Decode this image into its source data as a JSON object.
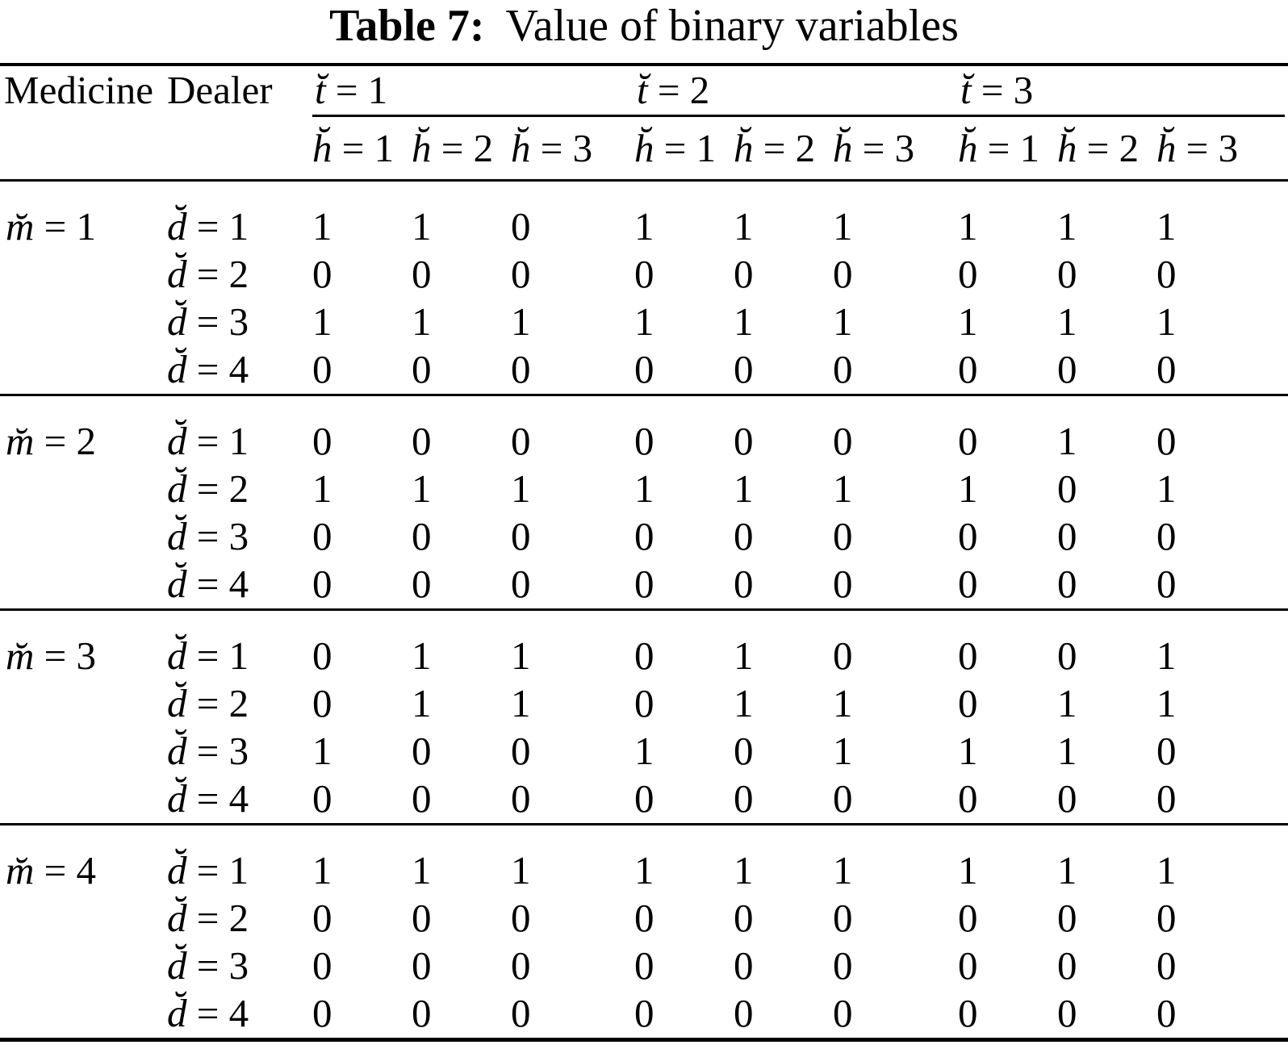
{
  "title": {
    "label": "Table 7:",
    "caption": "Value of binary variables"
  },
  "colors": {
    "background": "#ffffff",
    "text": "#000000",
    "rule": "#000000"
  },
  "header": {
    "medicine": "Medicine",
    "dealer": "Dealer",
    "t_var": "t̆",
    "h_var": "h̆",
    "t_groups": [
      " = 1",
      " = 2",
      " = 3"
    ],
    "h_cols": [
      " = 1",
      " = 2",
      " = 3"
    ]
  },
  "groups": [
    {
      "m_var": "m̆",
      "m_eq": " = 1",
      "rows": [
        {
          "d_var": "d̆",
          "d_eq": " = 1",
          "values": [
            1,
            1,
            0,
            1,
            1,
            1,
            1,
            1,
            1
          ]
        },
        {
          "d_var": "d̆",
          "d_eq": " = 2",
          "values": [
            0,
            0,
            0,
            0,
            0,
            0,
            0,
            0,
            0
          ]
        },
        {
          "d_var": "d̆",
          "d_eq": " = 3",
          "values": [
            1,
            1,
            1,
            1,
            1,
            1,
            1,
            1,
            1
          ]
        },
        {
          "d_var": "d̆",
          "d_eq": " = 4",
          "values": [
            0,
            0,
            0,
            0,
            0,
            0,
            0,
            0,
            0
          ]
        }
      ]
    },
    {
      "m_var": "m̆",
      "m_eq": " = 2",
      "rows": [
        {
          "d_var": "d̆",
          "d_eq": " = 1",
          "values": [
            0,
            0,
            0,
            0,
            0,
            0,
            0,
            1,
            0
          ]
        },
        {
          "d_var": "d̆",
          "d_eq": " = 2",
          "values": [
            1,
            1,
            1,
            1,
            1,
            1,
            1,
            0,
            1
          ]
        },
        {
          "d_var": "d̆",
          "d_eq": " = 3",
          "values": [
            0,
            0,
            0,
            0,
            0,
            0,
            0,
            0,
            0
          ]
        },
        {
          "d_var": "d̆",
          "d_eq": " = 4",
          "values": [
            0,
            0,
            0,
            0,
            0,
            0,
            0,
            0,
            0
          ]
        }
      ]
    },
    {
      "m_var": "m̆",
      "m_eq": " = 3",
      "rows": [
        {
          "d_var": "d̆",
          "d_eq": " = 1",
          "values": [
            0,
            1,
            1,
            0,
            1,
            0,
            0,
            0,
            1
          ]
        },
        {
          "d_var": "d̆",
          "d_eq": " = 2",
          "values": [
            0,
            1,
            1,
            0,
            1,
            1,
            0,
            1,
            1
          ]
        },
        {
          "d_var": "d̆",
          "d_eq": " = 3",
          "values": [
            1,
            0,
            0,
            1,
            0,
            1,
            1,
            1,
            0
          ]
        },
        {
          "d_var": "d̆",
          "d_eq": " = 4",
          "values": [
            0,
            0,
            0,
            0,
            0,
            0,
            0,
            0,
            0
          ]
        }
      ]
    },
    {
      "m_var": "m̆",
      "m_eq": " = 4",
      "rows": [
        {
          "d_var": "d̆",
          "d_eq": " = 1",
          "values": [
            1,
            1,
            1,
            1,
            1,
            1,
            1,
            1,
            1
          ]
        },
        {
          "d_var": "d̆",
          "d_eq": " = 2",
          "values": [
            0,
            0,
            0,
            0,
            0,
            0,
            0,
            0,
            0
          ]
        },
        {
          "d_var": "d̆",
          "d_eq": " = 3",
          "values": [
            0,
            0,
            0,
            0,
            0,
            0,
            0,
            0,
            0
          ]
        },
        {
          "d_var": "d̆",
          "d_eq": " = 4",
          "values": [
            0,
            0,
            0,
            0,
            0,
            0,
            0,
            0,
            0
          ]
        }
      ]
    }
  ]
}
